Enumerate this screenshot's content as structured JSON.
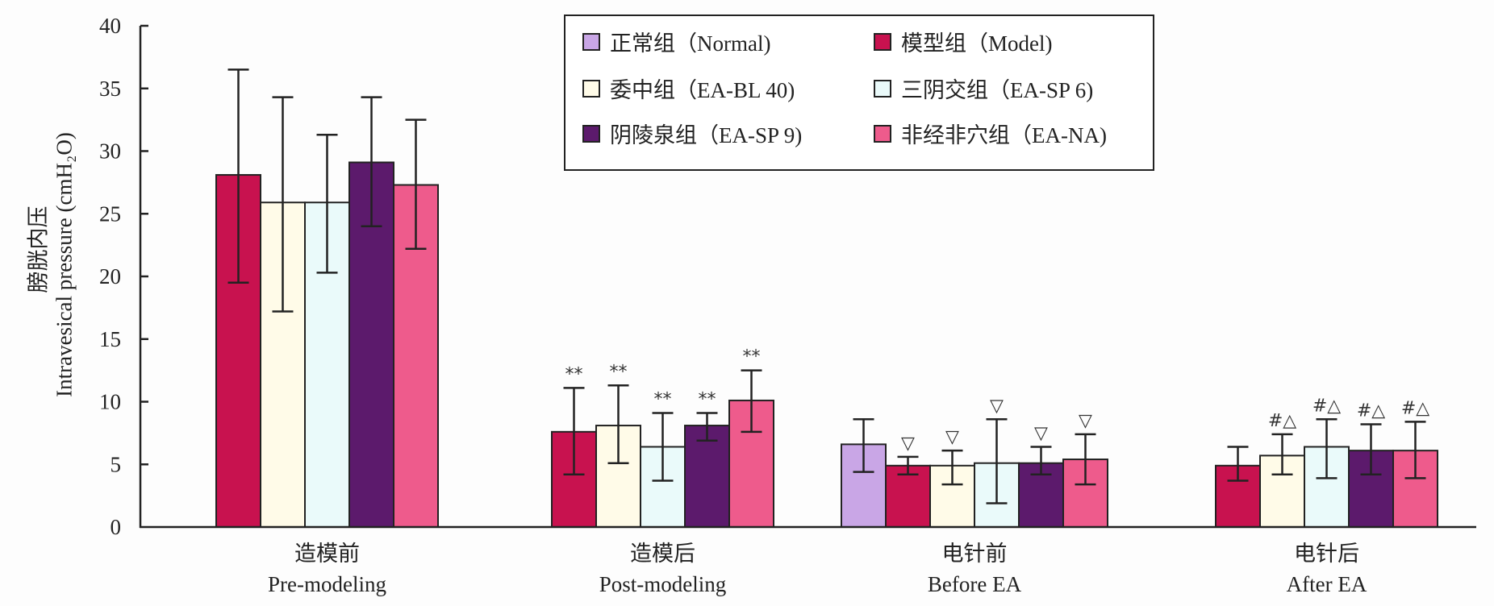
{
  "chart_data": {
    "type": "bar",
    "title": "",
    "ylabel_cn": "膀胱内压",
    "ylabel": "Intravesical pressure (cmH₂O)",
    "ylim": [
      0,
      40
    ],
    "yticks": [
      0,
      5,
      10,
      15,
      20,
      25,
      30,
      35,
      40
    ],
    "grid": false,
    "legend_position": "top-center",
    "categories": [
      {
        "cn": "造模前",
        "en": "Pre-modeling"
      },
      {
        "cn": "造模后",
        "en": "Post-modeling"
      },
      {
        "cn": "电针前",
        "en": "Before EA"
      },
      {
        "cn": "电针后",
        "en": "After EA"
      }
    ],
    "series": [
      {
        "name": "正常组（Normal)",
        "color": "#c9a6e6",
        "values": [
          null,
          null,
          6.6,
          null
        ],
        "err_upper": [
          null,
          null,
          8.6,
          null
        ],
        "err_lower": [
          null,
          null,
          4.4,
          null
        ],
        "annotations": [
          null,
          null,
          null,
          null
        ]
      },
      {
        "name": "模型组（Model)",
        "color": "#c8124f",
        "values": [
          28.1,
          7.6,
          4.9,
          4.9
        ],
        "err_upper": [
          36.5,
          11.1,
          5.6,
          6.4
        ],
        "err_lower": [
          19.5,
          4.2,
          4.2,
          3.7
        ],
        "annotations": [
          null,
          "**",
          "▽",
          null
        ]
      },
      {
        "name": "委中组（EA-BL 40)",
        "color": "#fffbe8",
        "values": [
          25.9,
          8.1,
          4.9,
          5.7
        ],
        "err_upper": [
          34.3,
          11.3,
          6.1,
          7.4
        ],
        "err_lower": [
          17.2,
          5.1,
          3.4,
          4.2
        ],
        "annotations": [
          null,
          "**",
          "▽",
          "#△"
        ]
      },
      {
        "name": "三阴交组（EA-SP 6)",
        "color": "#eafafa",
        "values": [
          25.9,
          6.4,
          5.1,
          6.4
        ],
        "err_upper": [
          31.3,
          9.1,
          8.6,
          8.6
        ],
        "err_lower": [
          20.3,
          3.7,
          1.9,
          3.9
        ],
        "annotations": [
          null,
          "**",
          "▽",
          "#△"
        ]
      },
      {
        "name": "阴陵泉组（EA-SP 9)",
        "color": "#5c1a6c",
        "values": [
          29.1,
          8.1,
          5.1,
          6.1
        ],
        "err_upper": [
          34.3,
          9.1,
          6.4,
          8.2
        ],
        "err_lower": [
          24.0,
          6.9,
          4.2,
          4.2
        ],
        "annotations": [
          null,
          "**",
          "▽",
          "#△"
        ]
      },
      {
        "name": "非经非穴组（EA-NA)",
        "color": "#ee5b8c",
        "values": [
          27.3,
          10.1,
          5.4,
          6.1
        ],
        "err_upper": [
          32.5,
          12.5,
          7.4,
          8.4
        ],
        "err_lower": [
          22.2,
          7.6,
          3.4,
          3.9
        ],
        "annotations": [
          null,
          "**",
          "▽",
          "#△"
        ]
      }
    ],
    "legend_order": [
      0,
      1,
      2,
      3,
      4,
      5
    ]
  }
}
